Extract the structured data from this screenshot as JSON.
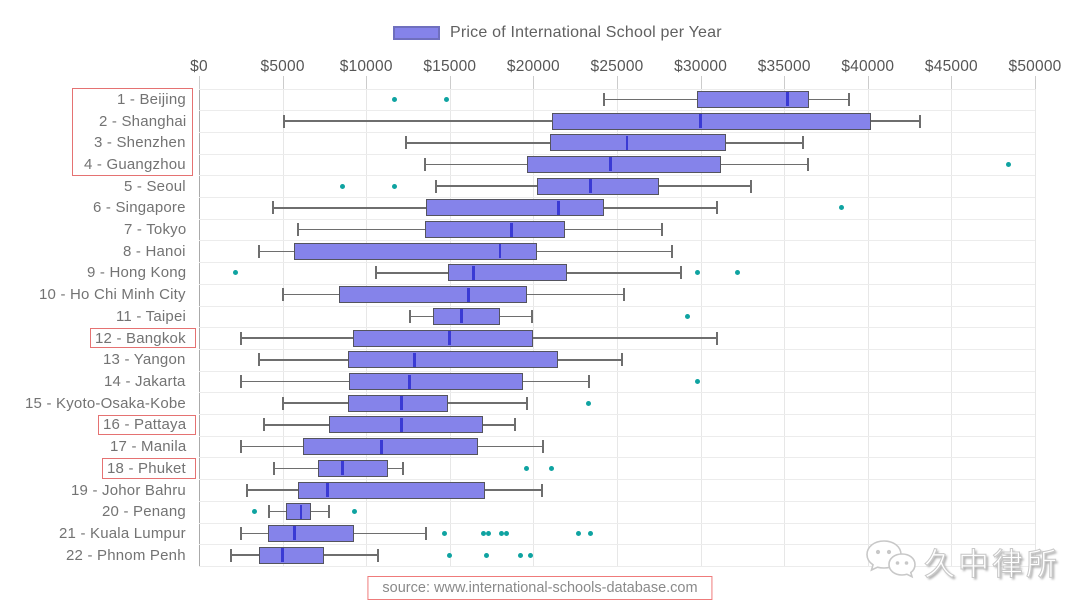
{
  "legend": {
    "label": "Price of International School per Year"
  },
  "source": {
    "text": "source: www.international-schools-database.com"
  },
  "watermark": {
    "text": "久中律所"
  },
  "colors": {
    "box_fill": "#8583ea",
    "box_border": "#54545e",
    "median": "#3a3ad4",
    "whisker": "#6e6e6e",
    "outlier": "#0fa3a1",
    "grid": "#e7e7e7",
    "highlight": "#e57272",
    "tick_label": "#565656",
    "y_label": "#737373"
  },
  "chart_data": {
    "type": "boxplot",
    "orientation": "horizontal",
    "legend_label": "Price of International School per Year",
    "x_axis": {
      "position": "top",
      "range": [
        0,
        50000
      ],
      "tick_values": [
        0,
        5000,
        10000,
        15000,
        20000,
        25000,
        30000,
        35000,
        40000,
        45000,
        50000
      ],
      "tick_labels": [
        "$0",
        "$5000",
        "$10000",
        "$15000",
        "$20000",
        "$25000",
        "$30000",
        "$35000",
        "$40000",
        "$45000",
        "$50000"
      ]
    },
    "grid": true,
    "cities": [
      {
        "label": "1 - Beijing",
        "min": 24200,
        "q1": 29800,
        "median": 35200,
        "q3": 36500,
        "max": 38900,
        "outliers": [
          11700,
          14800
        ]
      },
      {
        "label": "2 - Shanghai",
        "min": 5100,
        "q1": 21100,
        "median": 30000,
        "q3": 40200,
        "max": 43100,
        "outliers": []
      },
      {
        "label": "3 - Shenzhen",
        "min": 12400,
        "q1": 21000,
        "median": 25600,
        "q3": 31500,
        "max": 36100,
        "outliers": []
      },
      {
        "label": "4 - Guangzhou",
        "min": 13500,
        "q1": 19600,
        "median": 24600,
        "q3": 31200,
        "max": 36400,
        "outliers": [
          48400
        ]
      },
      {
        "label": "5 - Seoul",
        "min": 14200,
        "q1": 20200,
        "median": 23400,
        "q3": 27500,
        "max": 33000,
        "outliers": [
          8600,
          11700
        ]
      },
      {
        "label": "6 - Singapore",
        "min": 4400,
        "q1": 13600,
        "median": 21500,
        "q3": 24200,
        "max": 31000,
        "outliers": [
          38400
        ]
      },
      {
        "label": "7 - Tokyo",
        "min": 5900,
        "q1": 13500,
        "median": 18700,
        "q3": 21900,
        "max": 27700,
        "outliers": []
      },
      {
        "label": "8 - Hanoi",
        "min": 3600,
        "q1": 5700,
        "median": 18000,
        "q3": 20200,
        "max": 28300,
        "outliers": []
      },
      {
        "label": "9 - Hong Kong",
        "min": 10600,
        "q1": 14900,
        "median": 16400,
        "q3": 22000,
        "max": 28800,
        "outliers": [
          2200,
          29800,
          32200
        ]
      },
      {
        "label": "10 - Ho Chi Minh City",
        "min": 5000,
        "q1": 8400,
        "median": 16100,
        "q3": 19600,
        "max": 25400,
        "outliers": []
      },
      {
        "label": "11 - Taipei",
        "min": 12600,
        "q1": 14000,
        "median": 15700,
        "q3": 18000,
        "max": 19900,
        "outliers": [
          29200
        ]
      },
      {
        "label": "12 - Bangkok",
        "min": 2500,
        "q1": 9200,
        "median": 15000,
        "q3": 20000,
        "max": 31000,
        "outliers": []
      },
      {
        "label": "13 - Yangon",
        "min": 3600,
        "q1": 8900,
        "median": 12900,
        "q3": 21500,
        "max": 25300,
        "outliers": []
      },
      {
        "label": "14 - Jakarta",
        "min": 2500,
        "q1": 9000,
        "median": 12600,
        "q3": 19400,
        "max": 23300,
        "outliers": [
          29800
        ]
      },
      {
        "label": "15 - Kyoto-Osaka-Kobe",
        "min": 5000,
        "q1": 8900,
        "median": 12100,
        "q3": 14900,
        "max": 19600,
        "outliers": [
          23300
        ]
      },
      {
        "label": "16 - Pattaya",
        "min": 3900,
        "q1": 7800,
        "median": 12100,
        "q3": 17000,
        "max": 18900,
        "outliers": []
      },
      {
        "label": "17 - Manila",
        "min": 2500,
        "q1": 6200,
        "median": 10900,
        "q3": 16700,
        "max": 20600,
        "outliers": []
      },
      {
        "label": "18 - Phuket",
        "min": 4500,
        "q1": 7100,
        "median": 8600,
        "q3": 11300,
        "max": 12200,
        "outliers": [
          19600,
          21100
        ]
      },
      {
        "label": "19 - Johor Bahru",
        "min": 2900,
        "q1": 5900,
        "median": 7700,
        "q3": 17100,
        "max": 20500,
        "outliers": []
      },
      {
        "label": "20 - Penang",
        "min": 4200,
        "q1": 5200,
        "median": 6100,
        "q3": 6700,
        "max": 7800,
        "outliers": [
          3300,
          9300
        ]
      },
      {
        "label": "21 - Kuala Lumpur",
        "min": 2500,
        "q1": 4100,
        "median": 5700,
        "q3": 9300,
        "max": 13600,
        "outliers": [
          14700,
          17000,
          17300,
          18100,
          18400,
          22700,
          23400
        ]
      },
      {
        "label": "22 - Phnom Penh",
        "min": 1900,
        "q1": 3600,
        "median": 5000,
        "q3": 7500,
        "max": 10700,
        "outliers": [
          15000,
          17200,
          19200,
          19800
        ]
      }
    ],
    "highlighted_rows": [
      [
        0,
        1,
        2,
        3
      ],
      [
        11
      ],
      [
        15
      ],
      [
        17
      ]
    ]
  }
}
